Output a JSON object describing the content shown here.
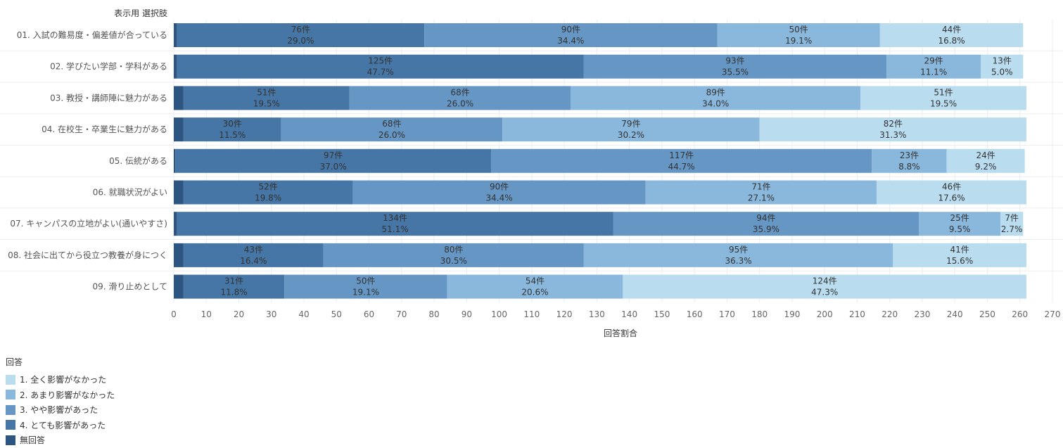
{
  "chart_data": {
    "type": "bar",
    "orientation": "horizontal",
    "stacked": true,
    "row_header": "表示用 選択肢",
    "xlabel": "回答割合",
    "xlim": [
      0,
      270
    ],
    "xticks": [
      0,
      10,
      20,
      30,
      40,
      50,
      60,
      70,
      80,
      90,
      100,
      110,
      120,
      130,
      140,
      150,
      160,
      170,
      180,
      190,
      200,
      210,
      220,
      230,
      240,
      250,
      260,
      270
    ],
    "grid": true,
    "legend_placement": "bottom-left",
    "categories": [
      "01. 入試の難易度・偏差値が合っている",
      "02. 学びたい学部・学科がある",
      "03. 教授・講師陣に魅力がある",
      "04. 在校生・卒業生に魅力がある",
      "05. 伝統がある",
      "06. 就職状況がよい",
      "07. キャンパスの立地がよい(通いやすさ)",
      "08. 社会に出てから役立つ教養が身につく",
      "09. 滑り止めとして"
    ],
    "series": [
      {
        "name": "無回答",
        "color": "#2c5582",
        "values": [
          1,
          1,
          3,
          3,
          0.5,
          3,
          1,
          3,
          3
        ],
        "labels": [
          null,
          null,
          null,
          null,
          null,
          null,
          null,
          null,
          null
        ]
      },
      {
        "name": "4. とても影響があった",
        "color": "#4676a5",
        "values": [
          76,
          125,
          51,
          30,
          97,
          52,
          134,
          43,
          31
        ],
        "labels": [
          [
            "76件",
            "29.0%"
          ],
          [
            "125件",
            "47.7%"
          ],
          [
            "51件",
            "19.5%"
          ],
          [
            "30件",
            "11.5%"
          ],
          [
            "97件",
            "37.0%"
          ],
          [
            "52件",
            "19.8%"
          ],
          [
            "134件",
            "51.1%"
          ],
          [
            "43件",
            "16.4%"
          ],
          [
            "31件",
            "11.8%"
          ]
        ]
      },
      {
        "name": "3. やや影響があった",
        "color": "#6697c4",
        "values": [
          90,
          93,
          68,
          68,
          117,
          90,
          94,
          80,
          50
        ],
        "labels": [
          [
            "90件",
            "34.4%"
          ],
          [
            "93件",
            "35.5%"
          ],
          [
            "68件",
            "26.0%"
          ],
          [
            "68件",
            "26.0%"
          ],
          [
            "117件",
            "44.7%"
          ],
          [
            "90件",
            "34.4%"
          ],
          [
            "94件",
            "35.9%"
          ],
          [
            "80件",
            "30.5%"
          ],
          [
            "50件",
            "19.1%"
          ]
        ]
      },
      {
        "name": "2. あまり影響がなかった",
        "color": "#8ab8dd",
        "values": [
          50,
          29,
          89,
          79,
          23,
          71,
          25,
          95,
          54
        ],
        "labels": [
          [
            "50件",
            "19.1%"
          ],
          [
            "29件",
            "11.1%"
          ],
          [
            "89件",
            "34.0%"
          ],
          [
            "79件",
            "30.2%"
          ],
          [
            "23件",
            "8.8%"
          ],
          [
            "71件",
            "27.1%"
          ],
          [
            "25件",
            "9.5%"
          ],
          [
            "95件",
            "36.3%"
          ],
          [
            "54件",
            "20.6%"
          ]
        ]
      },
      {
        "name": "1. 全く影響がなかった",
        "color": "#b9dcef",
        "values": [
          44,
          13,
          51,
          82,
          24,
          46,
          7,
          41,
          124
        ],
        "labels": [
          [
            "44件",
            "16.8%"
          ],
          [
            "13件",
            "5.0%"
          ],
          [
            "51件",
            "19.5%"
          ],
          [
            "82件",
            "31.3%"
          ],
          [
            "24件",
            "9.2%"
          ],
          [
            "46件",
            "17.6%"
          ],
          [
            "7件",
            "2.7%"
          ],
          [
            "41件",
            "15.6%"
          ],
          [
            "124件",
            "47.3%"
          ]
        ]
      }
    ]
  },
  "legend": {
    "title": "回答",
    "items": [
      {
        "label": "1. 全く影響がなかった",
        "color": "#b9dcef"
      },
      {
        "label": "2. あまり影響がなかった",
        "color": "#8ab8dd"
      },
      {
        "label": "3. やや影響があった",
        "color": "#6697c4"
      },
      {
        "label": "4. とても影響があった",
        "color": "#4676a5"
      },
      {
        "label": "無回答",
        "color": "#2c5582"
      }
    ]
  }
}
